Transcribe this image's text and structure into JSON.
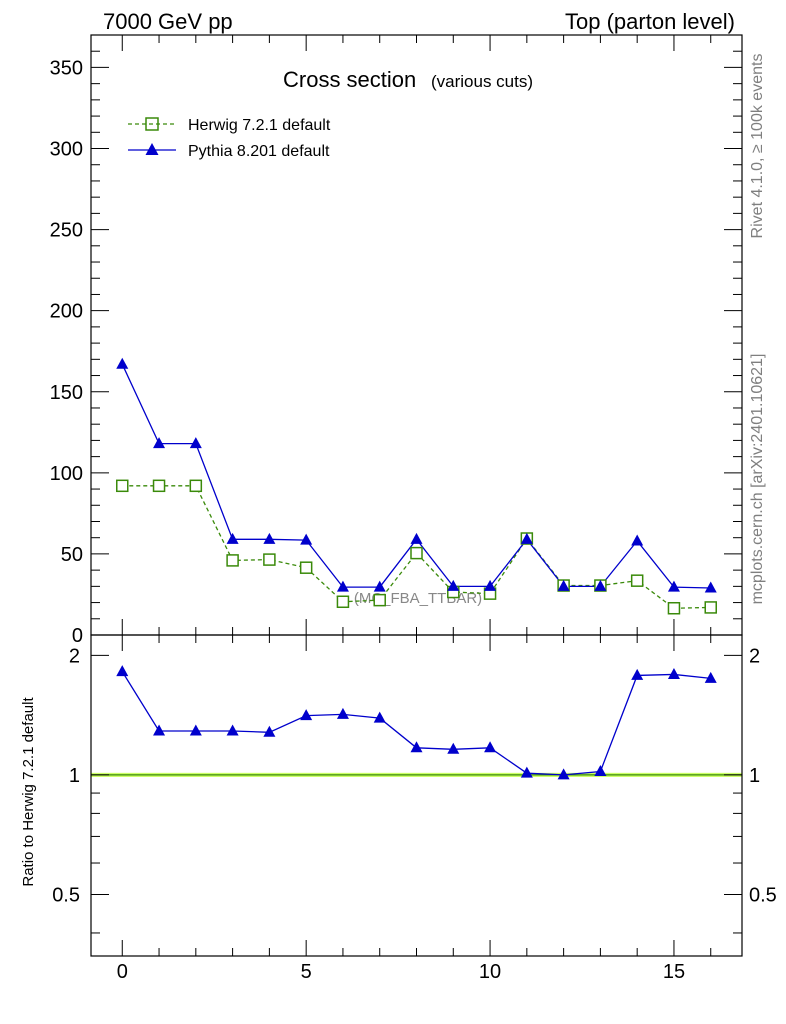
{
  "header": {
    "left": "7000 GeV pp",
    "right": "Top (parton level)"
  },
  "side": {
    "rivet": "Rivet 4.1.0, ≥ 100k events",
    "mcplots": "mcplots.cern.ch [arXiv:2401.10621]"
  },
  "colors": {
    "herwig": "#3a8a0a",
    "pythia": "#0000cc",
    "band": "#ccff66"
  },
  "chart_data": {
    "type": "line",
    "title": "Cross section",
    "subtitle": "(various cuts)",
    "watermark": "(MC_FBA_TTBAR)",
    "x": [
      0,
      1,
      2,
      3,
      4,
      5,
      6,
      7,
      8,
      9,
      10,
      11,
      12,
      13,
      14,
      15,
      16
    ],
    "xlim": [
      -0.85,
      16.85
    ],
    "xticks": [
      0,
      5,
      10,
      15
    ],
    "ylim": [
      0,
      370
    ],
    "yticks": [
      0,
      50,
      100,
      150,
      200,
      250,
      300,
      350
    ],
    "ratio_ylabel": "Ratio to Herwig 7.2.1 default",
    "ratio_ylim": [
      0.35,
      2.25
    ],
    "ratio_yticks": [
      0.5,
      1,
      2
    ],
    "ratio_ytick_labels": [
      "0.5",
      "1",
      "2"
    ],
    "series": [
      {
        "name": "Herwig 7.2.1 default",
        "marker": "open-square",
        "linestyle": "dashed",
        "values": [
          92,
          92,
          92,
          46,
          46.5,
          41.5,
          20.5,
          21.5,
          50.5,
          26.5,
          25.5,
          59.5,
          30.5,
          30.5,
          33.5,
          16.5,
          17
        ]
      },
      {
        "name": "Pythia 8.201 default",
        "marker": "filled-triangle",
        "linestyle": "solid",
        "values": [
          167,
          118,
          118,
          59,
          59,
          58.5,
          29.5,
          29.5,
          59,
          30,
          30,
          59,
          30,
          30,
          58,
          29.5,
          29
        ]
      }
    ],
    "ratio_values": [
      1.82,
      1.29,
      1.29,
      1.29,
      1.28,
      1.41,
      1.42,
      1.39,
      1.17,
      1.16,
      1.17,
      1.01,
      1.0,
      1.02,
      1.78,
      1.79,
      1.75
    ]
  }
}
